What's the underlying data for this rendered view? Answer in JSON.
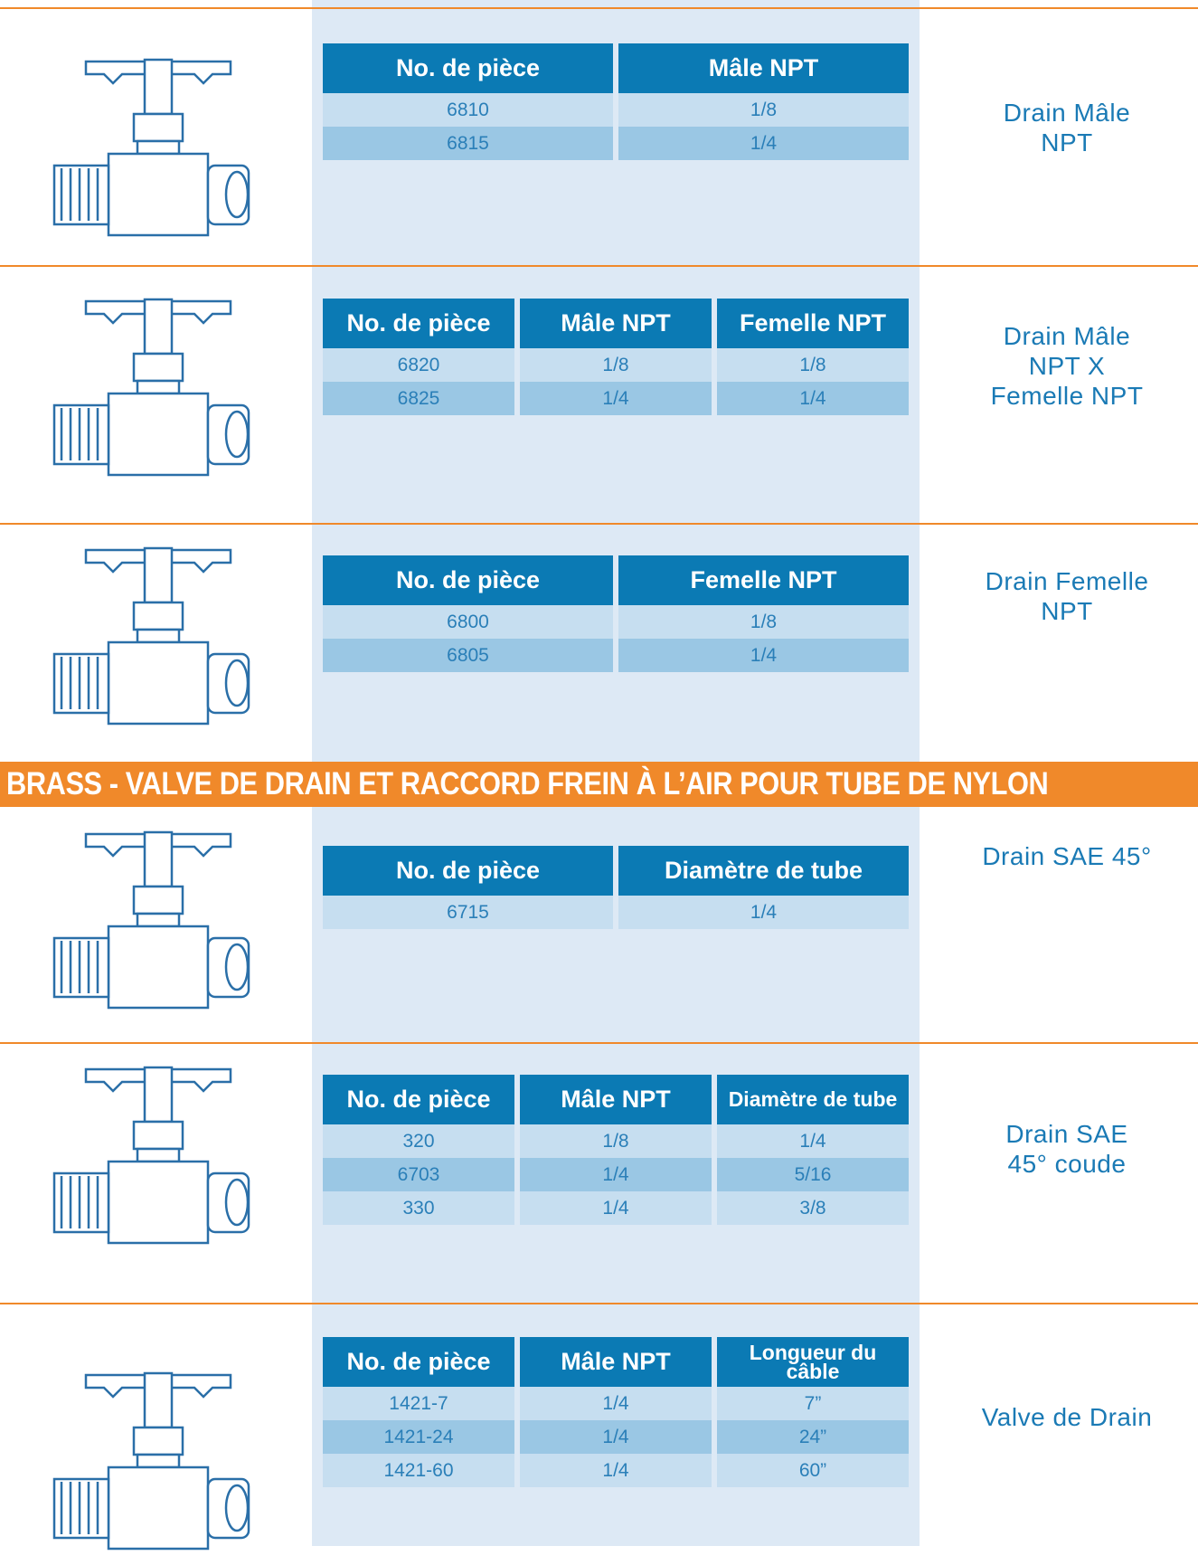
{
  "banner": "BRASS - VALVE DE DRAIN ET RACCORD FREIN À L’AIR POUR TUBE DE NYLON",
  "sections": [
    {
      "table": {
        "headers": [
          "No. de pièce",
          "Mâle NPT"
        ],
        "rows": [
          [
            "6810",
            "1/8"
          ],
          [
            "6815",
            "1/4"
          ]
        ]
      },
      "label": [
        "Drain Mâle",
        "NPT"
      ]
    },
    {
      "table": {
        "headers": [
          "No. de pièce",
          "Mâle NPT",
          "Femelle NPT"
        ],
        "rows": [
          [
            "6820",
            "1/8",
            "1/8"
          ],
          [
            "6825",
            "1/4",
            "1/4"
          ]
        ]
      },
      "label": [
        "Drain Mâle",
        "NPT X",
        "Femelle NPT"
      ]
    },
    {
      "table": {
        "headers": [
          "No. de pièce",
          "Femelle NPT"
        ],
        "rows": [
          [
            "6800",
            "1/8"
          ],
          [
            "6805",
            "1/4"
          ]
        ]
      },
      "label": [
        "Drain Femelle",
        "NPT"
      ]
    },
    {
      "table": {
        "headers": [
          "No. de pièce",
          "Diamètre de tube"
        ],
        "rows": [
          [
            "6715",
            "1/4"
          ]
        ]
      },
      "label": [
        "Drain SAE 45°"
      ]
    },
    {
      "table": {
        "headers": [
          "No. de pièce",
          "Mâle NPT",
          "Diamètre de tube"
        ],
        "rows": [
          [
            "320",
            "1/8",
            "1/4"
          ],
          [
            "6703",
            "1/4",
            "5/16"
          ],
          [
            "330",
            "1/4",
            "3/8"
          ]
        ]
      },
      "label": [
        "Drain SAE",
        "45° coude"
      ]
    },
    {
      "table": {
        "headers": [
          "No. de pièce",
          "Mâle NPT",
          "Longueur du câble"
        ],
        "rows": [
          [
            "1421-7",
            "1/4",
            "7”"
          ],
          [
            "1421-24",
            "1/4",
            "24”"
          ],
          [
            "1421-60",
            "1/4",
            "60”"
          ]
        ]
      },
      "label": [
        "Valve de Drain"
      ]
    }
  ]
}
